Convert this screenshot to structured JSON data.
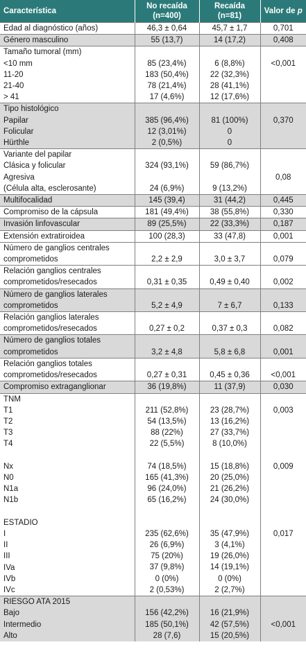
{
  "header": {
    "characteristic": "Característica",
    "no_relapse_line1": "No recaída",
    "no_relapse_line2": "(n=400)",
    "relapse_line1": "Recaída",
    "relapse_line2": "(n=81)",
    "pvalue_prefix": "Valor de ",
    "pvalue_symbol": "p"
  },
  "rows": [
    {
      "shade": false,
      "lines": [
        [
          "Edad al diagnóstico (años)",
          "46,3 ± 0,64",
          "45,7 ± 1,7",
          "0,701"
        ]
      ]
    },
    {
      "shade": true,
      "lines": [
        [
          "Género masculino",
          "55 (13,7)",
          "14 (17,2)",
          "0,408"
        ]
      ]
    },
    {
      "shade": false,
      "lines": [
        [
          "Tamaño tumoral (mm)",
          "",
          "",
          ""
        ],
        [
          "<10 mm",
          "85 (23,4%)",
          "6 (8,8%)",
          "<0,001"
        ],
        [
          "11-20",
          "183 (50,4%)",
          "22 (32,3%)",
          ""
        ],
        [
          "21-40",
          "78 (21,4%)",
          "28 (41,1%)",
          ""
        ],
        [
          "> 41",
          "17 (4,6%)",
          "12 (17,6%)",
          ""
        ]
      ]
    },
    {
      "shade": true,
      "lines": [
        [
          "Tipo histológico",
          "",
          "",
          ""
        ],
        [
          "Papilar",
          "385 (96,4%)",
          "81 (100%)",
          "0,370"
        ],
        [
          "Folicular",
          "12 (3,01%)",
          "0",
          ""
        ],
        [
          "Hürthle",
          "2 (0,5%)",
          "0",
          ""
        ]
      ]
    },
    {
      "shade": false,
      "lines": [
        [
          "Variante del papilar",
          "",
          "",
          ""
        ],
        [
          "Clásica y folicular",
          "324 (93,1%)",
          "59 (86,7%)",
          ""
        ],
        [
          "Agresiva",
          "",
          "",
          "0,08"
        ],
        [
          "(Célula alta, esclerosante)",
          "24 (6,9%)",
          "9 (13,2%)",
          ""
        ]
      ]
    },
    {
      "shade": true,
      "lines": [
        [
          "Multifocalidad",
          "145 (39,4)",
          "31 (44,2)",
          "0,445"
        ]
      ]
    },
    {
      "shade": false,
      "lines": [
        [
          "Compromiso de la cápsula",
          "181 (49,4%)",
          "38 (55,8%)",
          "0,330"
        ]
      ]
    },
    {
      "shade": true,
      "lines": [
        [
          "Invasión linfovascular",
          "89 (25,5%)",
          "22 (33,3%)",
          "0,187"
        ]
      ]
    },
    {
      "shade": false,
      "lines": [
        [
          "Extensión extratiroidea",
          "100 (28,3)",
          "33 (47,8)",
          "0,001"
        ]
      ]
    },
    {
      "shade": false,
      "lines": [
        [
          "Número de ganglios centrales",
          "",
          "",
          ""
        ],
        [
          "comprometidos",
          "2,2 ± 2,9",
          "3,0 ± 3,7",
          "0,079"
        ]
      ]
    },
    {
      "shade": false,
      "lines": [
        [
          "Relación ganglios centrales",
          "",
          "",
          ""
        ],
        [
          "comprometidos/resecados",
          "0,31 ± 0,35",
          "0,49 ± 0,40",
          "0,002"
        ]
      ]
    },
    {
      "shade": true,
      "lines": [
        [
          "Número de ganglios laterales",
          "",
          "",
          ""
        ],
        [
          "comprometidos",
          "5,2 ± 4,9",
          "7 ± 6,7",
          "0,133"
        ]
      ]
    },
    {
      "shade": false,
      "lines": [
        [
          "Relación ganglios laterales",
          "",
          "",
          ""
        ],
        [
          "comprometidos/resecados",
          "0,27 ± 0,2",
          "0,37 ± 0,3",
          "0,082"
        ]
      ]
    },
    {
      "shade": true,
      "lines": [
        [
          "Número de ganglios totales",
          "",
          "",
          ""
        ],
        [
          "comprometidos",
          "3,2 ± 4,8",
          "5,8 ± 6,8",
          "0,001"
        ]
      ]
    },
    {
      "shade": false,
      "lines": [
        [
          "Relación ganglios totales",
          "",
          "",
          ""
        ],
        [
          "comprometidos/resecados",
          "0,27 ± 0,31",
          "0,45 ± 0,36",
          "<0,001"
        ]
      ]
    },
    {
      "shade": true,
      "lines": [
        [
          "Compromiso extraganglionar",
          "36 (19,8%)",
          "11 (37,9)",
          "0,030"
        ]
      ]
    },
    {
      "shade": false,
      "lines": [
        [
          "TNM",
          "",
          "",
          ""
        ],
        [
          "T1",
          "211 (52,8%)",
          "23 (28,7%)",
          "0,003"
        ],
        [
          "T2",
          "54 (13,5%)",
          "13 (16,2%)",
          ""
        ],
        [
          "T3",
          "88 (22%)",
          "27 (33,7%)",
          ""
        ],
        [
          "T4",
          "22 (5,5%)",
          "8 (10,0%)",
          ""
        ],
        [
          "",
          "",
          "",
          ""
        ],
        [
          "Nx",
          "74 (18,5%)",
          "15 (18,8%)",
          "0,009"
        ],
        [
          "N0",
          "165 (41,3%)",
          "20 (25,0%)",
          ""
        ],
        [
          "N1a",
          "96 (24,0%)",
          "21 (26,2%)",
          ""
        ],
        [
          "N1b",
          "65 (16,2%)",
          "24 (30,0%)",
          ""
        ],
        [
          "",
          "",
          "",
          ""
        ],
        [
          "ESTADIO",
          "",
          "",
          ""
        ],
        [
          "I",
          "235 (62,6%)",
          "35 (47,9%)",
          "0,017"
        ],
        [
          "II",
          "26 (6,9%)",
          "3 (4,1%)",
          ""
        ],
        [
          "III",
          "75 (20%)",
          "19 (26,0%)",
          ""
        ],
        [
          "IVa",
          "37 (9,8%)",
          "14 (19,1%)",
          ""
        ],
        [
          "IVb",
          "0 (0%)",
          "0 (0%)",
          ""
        ],
        [
          "IVc",
          "2 (0,53%)",
          "2 (2,7%)",
          ""
        ]
      ]
    },
    {
      "shade": true,
      "lines": [
        [
          "RIESGO ATA 2015",
          "",
          "",
          ""
        ],
        [
          "Bajo",
          "156 (42,2%)",
          "16 (21,9%)",
          ""
        ],
        [
          "Intermedio",
          "185 (50,1%)",
          "42 (57,5%)",
          "<0,001"
        ],
        [
          "Alto",
          "28 (7,6)",
          "15 (20,5%)",
          ""
        ]
      ]
    }
  ]
}
